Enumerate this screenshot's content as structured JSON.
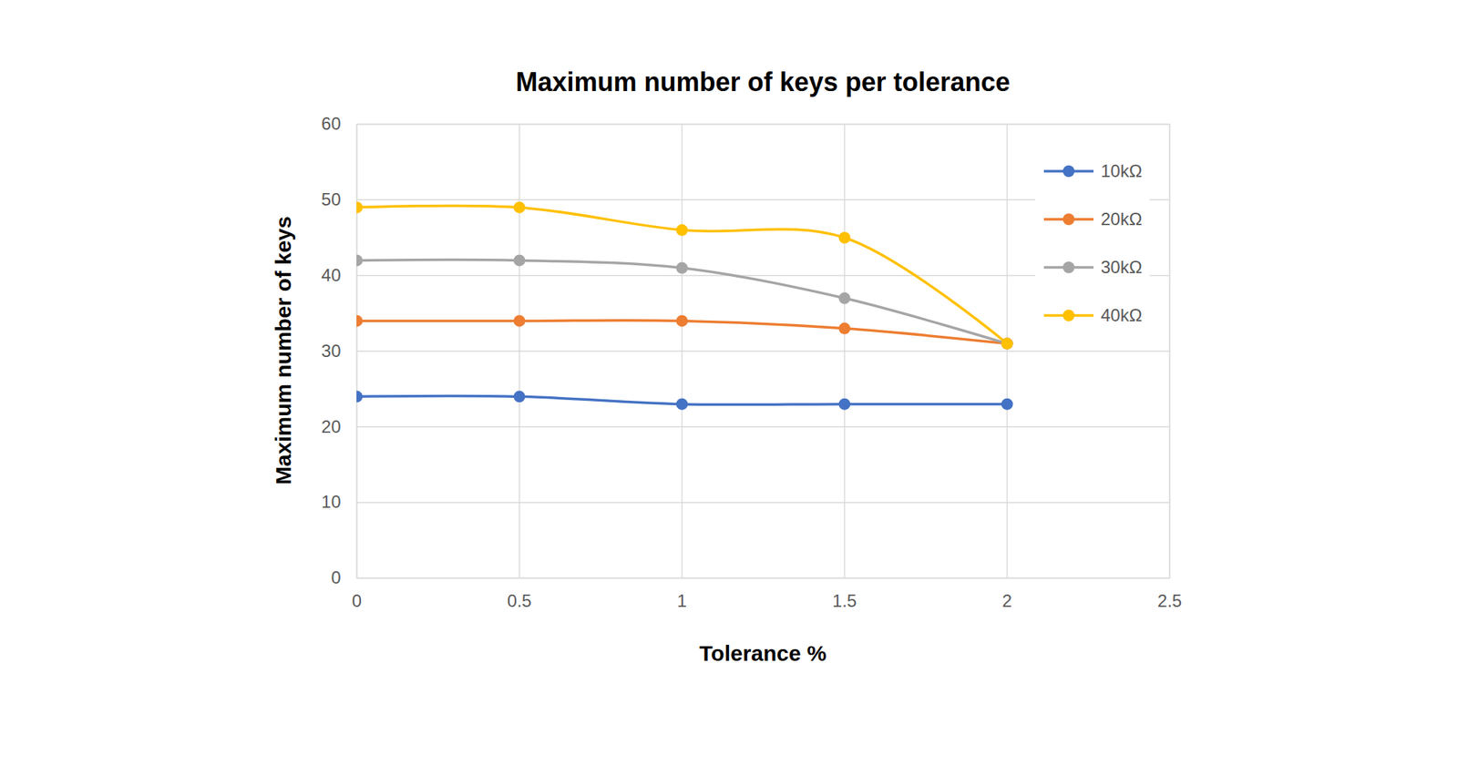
{
  "chart_data": {
    "type": "line",
    "title": "Maximum number of keys per tolerance",
    "x_label": "Tolerance %",
    "y_label": "Maximum number of keys",
    "x": [
      0,
      0.5,
      1,
      1.5,
      2
    ],
    "series": [
      {
        "name": "10kΩ",
        "color": "#4472c4",
        "values": [
          24,
          24,
          23,
          23,
          23
        ]
      },
      {
        "name": "20kΩ",
        "color": "#ed7d31",
        "values": [
          34,
          34,
          34,
          33,
          31
        ]
      },
      {
        "name": "30kΩ",
        "color": "#a5a5a5",
        "values": [
          42,
          42,
          41,
          37,
          31
        ]
      },
      {
        "name": "40kΩ",
        "color": "#ffc000",
        "values": [
          49,
          49,
          46,
          45,
          31
        ]
      }
    ],
    "xlim": [
      0,
      2.5
    ],
    "xticks": [
      0,
      0.5,
      1,
      1.5,
      2,
      2.5
    ],
    "ylim": [
      0,
      60
    ],
    "yticks": [
      0,
      10,
      20,
      30,
      40,
      50,
      60
    ],
    "grid": true,
    "legend": "right",
    "marker": "circle",
    "line_style": "solid"
  }
}
